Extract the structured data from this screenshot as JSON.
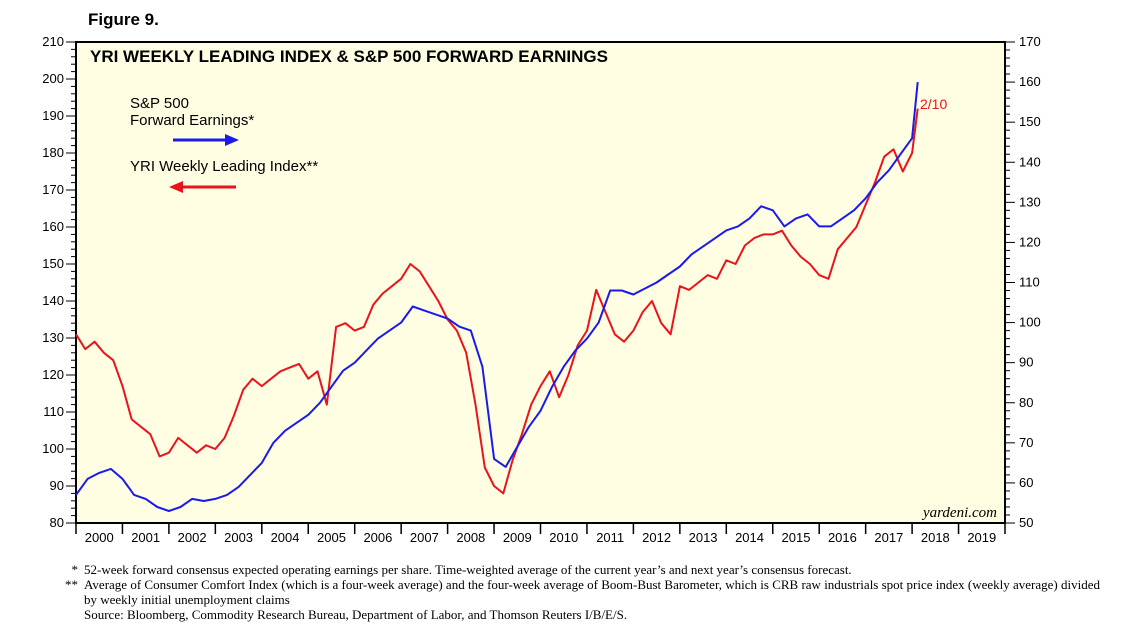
{
  "figure_label": "Figure 9.",
  "notes": [
    {
      "mark": "*",
      "text": "52-week forward consensus expected operating earnings per share. Time-weighted average of the current year’s and next year’s consensus forecast."
    },
    {
      "mark": "**",
      "text": "Average of Consumer Comfort Index (which is a four-week average) and the four-week average of Boom-Bust Barometer, which is CRB raw industrials spot price index (weekly average) divided by weekly initial unemployment claims"
    },
    {
      "mark": "",
      "text": "Source: Bloomberg, Commodity Research Bureau, Department of Labor, and Thomson Reuters I/B/E/S."
    }
  ],
  "chart_data": {
    "type": "line",
    "title": "YRI WEEKLY LEADING INDEX & S&P 500 FORWARD EARNINGS",
    "credit": "yardeni.com",
    "background_color": "#fffde2",
    "x_range": [
      2000,
      2020
    ],
    "years": [
      "2000",
      "2001",
      "2002",
      "2003",
      "2004",
      "2005",
      "2006",
      "2007",
      "2008",
      "2009",
      "2010",
      "2011",
      "2012",
      "2013",
      "2014",
      "2015",
      "2016",
      "2017",
      "2018",
      "2019"
    ],
    "left_axis": {
      "range": [
        80,
        210
      ],
      "ticks": [
        80,
        90,
        100,
        110,
        120,
        130,
        140,
        150,
        160,
        170,
        180,
        190,
        200,
        210
      ]
    },
    "right_axis": {
      "range": [
        50,
        170
      ],
      "ticks": [
        50,
        60,
        70,
        80,
        90,
        100,
        110,
        120,
        130,
        140,
        150,
        160,
        170
      ]
    },
    "end_label": {
      "text": "2/10",
      "color": "#e8141c"
    },
    "legend": [
      {
        "label_lines": [
          "S&P 500",
          "Forward Earnings*"
        ],
        "arrow": "right",
        "color": "#1a1aeb"
      },
      {
        "label_lines": [
          "YRI Weekly Leading Index**"
        ],
        "arrow": "left",
        "color": "#e8141c"
      }
    ],
    "series": [
      {
        "name": "YRI Weekly Leading Index",
        "axis": "left",
        "color": "#e8141c",
        "x": [
          2000.0,
          2000.2,
          2000.4,
          2000.6,
          2000.8,
          2001.0,
          2001.2,
          2001.4,
          2001.6,
          2001.8,
          2002.0,
          2002.2,
          2002.4,
          2002.6,
          2002.8,
          2003.0,
          2003.2,
          2003.4,
          2003.6,
          2003.8,
          2004.0,
          2004.2,
          2004.4,
          2004.6,
          2004.8,
          2005.0,
          2005.2,
          2005.4,
          2005.6,
          2005.8,
          2006.0,
          2006.2,
          2006.4,
          2006.6,
          2006.8,
          2007.0,
          2007.2,
          2007.4,
          2007.6,
          2007.8,
          2008.0,
          2008.2,
          2008.4,
          2008.6,
          2008.8,
          2009.0,
          2009.2,
          2009.4,
          2009.6,
          2009.8,
          2010.0,
          2010.2,
          2010.4,
          2010.6,
          2010.8,
          2011.0,
          2011.2,
          2011.4,
          2011.6,
          2011.8,
          2012.0,
          2012.2,
          2012.4,
          2012.6,
          2012.8,
          2013.0,
          2013.2,
          2013.4,
          2013.6,
          2013.8,
          2014.0,
          2014.2,
          2014.4,
          2014.6,
          2014.8,
          2015.0,
          2015.2,
          2015.4,
          2015.6,
          2015.8,
          2016.0,
          2016.2,
          2016.4,
          2016.6,
          2016.8,
          2017.0,
          2017.2,
          2017.4,
          2017.6,
          2017.8,
          2018.0,
          2018.12
        ],
        "values": [
          131,
          127,
          129,
          126,
          124,
          117,
          108,
          106,
          104,
          98,
          99,
          103,
          101,
          99,
          101,
          100,
          103,
          109,
          116,
          119,
          117,
          119,
          121,
          122,
          123,
          119,
          121,
          112,
          133,
          134,
          132,
          133,
          139,
          142,
          144,
          146,
          150,
          148,
          144,
          140,
          135,
          132,
          126,
          112,
          95,
          90,
          88,
          97,
          104,
          112,
          117,
          121,
          114,
          120,
          128,
          132,
          143,
          137,
          131,
          129,
          132,
          137,
          140,
          134,
          131,
          144,
          143,
          145,
          147,
          146,
          151,
          150,
          155,
          157,
          158,
          158,
          159,
          155,
          152,
          150,
          147,
          146,
          154,
          157,
          160,
          166,
          172,
          179,
          181,
          175,
          180,
          192
        ]
      },
      {
        "name": "S&P 500 Forward Earnings",
        "axis": "right",
        "color": "#1a1aeb",
        "x": [
          2000.0,
          2000.25,
          2000.5,
          2000.75,
          2001.0,
          2001.25,
          2001.5,
          2001.75,
          2002.0,
          2002.25,
          2002.5,
          2002.75,
          2003.0,
          2003.25,
          2003.5,
          2003.75,
          2004.0,
          2004.25,
          2004.5,
          2004.75,
          2005.0,
          2005.25,
          2005.5,
          2005.75,
          2006.0,
          2006.25,
          2006.5,
          2006.75,
          2007.0,
          2007.25,
          2007.5,
          2007.75,
          2008.0,
          2008.25,
          2008.5,
          2008.75,
          2009.0,
          2009.25,
          2009.5,
          2009.75,
          2010.0,
          2010.25,
          2010.5,
          2010.75,
          2011.0,
          2011.25,
          2011.5,
          2011.75,
          2012.0,
          2012.25,
          2012.5,
          2012.75,
          2013.0,
          2013.25,
          2013.5,
          2013.75,
          2014.0,
          2014.25,
          2014.5,
          2014.75,
          2015.0,
          2015.25,
          2015.5,
          2015.75,
          2016.0,
          2016.25,
          2016.5,
          2016.75,
          2017.0,
          2017.25,
          2017.5,
          2017.75,
          2018.0,
          2018.12
        ],
        "values": [
          57,
          61,
          62.5,
          63.5,
          61,
          57,
          56,
          54,
          53,
          54,
          56,
          55.5,
          56,
          57,
          59,
          62,
          65,
          70,
          73,
          75,
          77,
          80,
          84,
          88,
          90,
          93,
          96,
          98,
          100,
          104,
          103,
          102,
          101,
          99,
          98,
          89,
          66,
          64,
          69,
          74,
          78,
          84,
          89,
          93,
          96,
          100,
          108,
          108,
          107,
          108.5,
          110,
          112,
          114,
          117,
          119,
          121,
          123,
          124,
          126,
          129,
          128,
          124,
          126,
          127,
          124,
          124,
          126,
          128,
          131,
          135,
          138,
          142,
          146,
          160
        ]
      }
    ]
  }
}
